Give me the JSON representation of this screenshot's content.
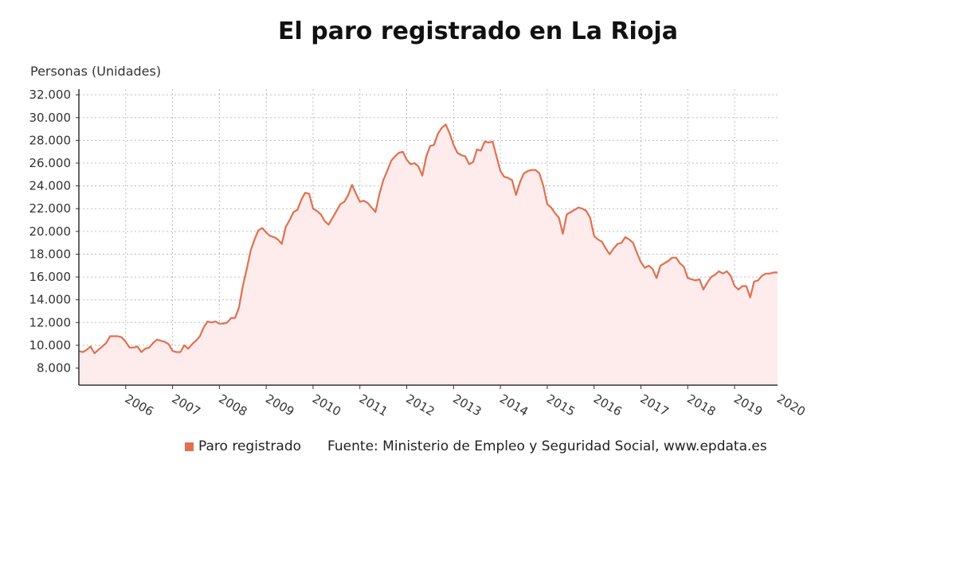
{
  "chart_data": {
    "type": "area",
    "title": "El paro registrado en La Rioja",
    "ylabel": "Personas (Unidades)",
    "xlabel": "",
    "ylim": [
      6500,
      32500
    ],
    "xlim": [
      2005.0,
      2019.917
    ],
    "yticks": [
      8000,
      10000,
      12000,
      14000,
      16000,
      18000,
      20000,
      22000,
      24000,
      26000,
      28000,
      30000,
      32000
    ],
    "ytick_labels": [
      "8.000",
      "10.000",
      "12.000",
      "14.000",
      "16.000",
      "18.000",
      "20.000",
      "22.000",
      "24.000",
      "26.000",
      "28.000",
      "30.000",
      "32.000"
    ],
    "xticks": [
      2006,
      2007,
      2008,
      2009,
      2010,
      2011,
      2012,
      2013,
      2014,
      2015,
      2016,
      2017,
      2018,
      2019,
      2020
    ],
    "grid": true,
    "legend_position": "bottom-left",
    "series": [
      {
        "name": "Paro registrado",
        "color": "#e07050",
        "points": [
          [
            2005.0,
            9500
          ],
          [
            2005.083,
            9400
          ],
          [
            2005.167,
            9600
          ],
          [
            2005.25,
            9900
          ],
          [
            2005.333,
            9300
          ],
          [
            2005.417,
            9600
          ],
          [
            2005.5,
            9900
          ],
          [
            2005.583,
            10200
          ],
          [
            2005.667,
            10800
          ],
          [
            2005.75,
            10800
          ],
          [
            2005.833,
            10800
          ],
          [
            2005.917,
            10700
          ],
          [
            2006.0,
            10300
          ],
          [
            2006.083,
            9800
          ],
          [
            2006.167,
            9800
          ],
          [
            2006.25,
            9900
          ],
          [
            2006.333,
            9400
          ],
          [
            2006.417,
            9700
          ],
          [
            2006.5,
            9800
          ],
          [
            2006.583,
            10200
          ],
          [
            2006.667,
            10500
          ],
          [
            2006.75,
            10400
          ],
          [
            2006.833,
            10300
          ],
          [
            2006.917,
            10100
          ],
          [
            2007.0,
            9500
          ],
          [
            2007.083,
            9400
          ],
          [
            2007.167,
            9400
          ],
          [
            2007.25,
            10000
          ],
          [
            2007.333,
            9700
          ],
          [
            2007.417,
            10100
          ],
          [
            2007.5,
            10400
          ],
          [
            2007.583,
            10800
          ],
          [
            2007.667,
            11600
          ],
          [
            2007.75,
            12100
          ],
          [
            2007.833,
            12000
          ],
          [
            2007.917,
            12100
          ],
          [
            2008.0,
            11900
          ],
          [
            2008.083,
            11900
          ],
          [
            2008.167,
            12000
          ],
          [
            2008.25,
            12400
          ],
          [
            2008.333,
            12400
          ],
          [
            2008.417,
            13300
          ],
          [
            2008.5,
            15200
          ],
          [
            2008.583,
            16700
          ],
          [
            2008.667,
            18300
          ],
          [
            2008.75,
            19300
          ],
          [
            2008.833,
            20100
          ],
          [
            2008.917,
            20300
          ],
          [
            2009.0,
            19900
          ],
          [
            2009.083,
            19600
          ],
          [
            2009.167,
            19500
          ],
          [
            2009.25,
            19300
          ],
          [
            2009.333,
            18900
          ],
          [
            2009.417,
            20400
          ],
          [
            2009.5,
            21000
          ],
          [
            2009.583,
            21700
          ],
          [
            2009.667,
            21900
          ],
          [
            2009.75,
            22800
          ],
          [
            2009.833,
            23400
          ],
          [
            2009.917,
            23300
          ],
          [
            2010.0,
            22000
          ],
          [
            2010.083,
            21800
          ],
          [
            2010.167,
            21500
          ],
          [
            2010.25,
            20900
          ],
          [
            2010.333,
            20600
          ],
          [
            2010.417,
            21200
          ],
          [
            2010.5,
            21800
          ],
          [
            2010.583,
            22400
          ],
          [
            2010.667,
            22600
          ],
          [
            2010.75,
            23200
          ],
          [
            2010.833,
            24100
          ],
          [
            2010.917,
            23300
          ],
          [
            2011.0,
            22600
          ],
          [
            2011.083,
            22700
          ],
          [
            2011.167,
            22500
          ],
          [
            2011.25,
            22100
          ],
          [
            2011.333,
            21700
          ],
          [
            2011.417,
            23300
          ],
          [
            2011.5,
            24500
          ],
          [
            2011.583,
            25300
          ],
          [
            2011.667,
            26200
          ],
          [
            2011.75,
            26600
          ],
          [
            2011.833,
            26900
          ],
          [
            2011.917,
            27000
          ],
          [
            2012.0,
            26300
          ],
          [
            2012.083,
            25900
          ],
          [
            2012.167,
            26000
          ],
          [
            2012.25,
            25700
          ],
          [
            2012.333,
            24900
          ],
          [
            2012.417,
            26600
          ],
          [
            2012.5,
            27500
          ],
          [
            2012.583,
            27600
          ],
          [
            2012.667,
            28600
          ],
          [
            2012.75,
            29100
          ],
          [
            2012.833,
            29400
          ],
          [
            2012.917,
            28600
          ],
          [
            2013.0,
            27600
          ],
          [
            2013.083,
            26900
          ],
          [
            2013.167,
            26700
          ],
          [
            2013.25,
            26600
          ],
          [
            2013.333,
            25900
          ],
          [
            2013.417,
            26100
          ],
          [
            2013.5,
            27200
          ],
          [
            2013.583,
            27100
          ],
          [
            2013.667,
            27900
          ],
          [
            2013.75,
            27800
          ],
          [
            2013.833,
            27900
          ],
          [
            2013.917,
            26600
          ],
          [
            2014.0,
            25300
          ],
          [
            2014.083,
            24800
          ],
          [
            2014.167,
            24700
          ],
          [
            2014.25,
            24500
          ],
          [
            2014.333,
            23200
          ],
          [
            2014.417,
            24300
          ],
          [
            2014.5,
            25100
          ],
          [
            2014.583,
            25300
          ],
          [
            2014.667,
            25400
          ],
          [
            2014.75,
            25400
          ],
          [
            2014.833,
            25100
          ],
          [
            2014.917,
            24000
          ],
          [
            2015.0,
            22400
          ],
          [
            2015.083,
            22100
          ],
          [
            2015.167,
            21600
          ],
          [
            2015.25,
            21200
          ],
          [
            2015.333,
            19800
          ],
          [
            2015.417,
            21500
          ],
          [
            2015.5,
            21700
          ],
          [
            2015.583,
            21900
          ],
          [
            2015.667,
            22100
          ],
          [
            2015.75,
            22000
          ],
          [
            2015.833,
            21800
          ],
          [
            2015.917,
            21200
          ],
          [
            2016.0,
            19600
          ],
          [
            2016.083,
            19300
          ],
          [
            2016.167,
            19100
          ],
          [
            2016.25,
            18500
          ],
          [
            2016.333,
            18000
          ],
          [
            2016.417,
            18500
          ],
          [
            2016.5,
            18900
          ],
          [
            2016.583,
            19000
          ],
          [
            2016.667,
            19500
          ],
          [
            2016.75,
            19300
          ],
          [
            2016.833,
            19000
          ],
          [
            2016.917,
            18100
          ],
          [
            2017.0,
            17300
          ],
          [
            2017.083,
            16800
          ],
          [
            2017.167,
            17000
          ],
          [
            2017.25,
            16700
          ],
          [
            2017.333,
            15900
          ],
          [
            2017.417,
            17000
          ],
          [
            2017.5,
            17200
          ],
          [
            2017.583,
            17400
          ],
          [
            2017.667,
            17700
          ],
          [
            2017.75,
            17700
          ],
          [
            2017.833,
            17200
          ],
          [
            2017.917,
            16900
          ],
          [
            2018.0,
            15900
          ],
          [
            2018.083,
            15800
          ],
          [
            2018.167,
            15700
          ],
          [
            2018.25,
            15800
          ],
          [
            2018.333,
            14900
          ],
          [
            2018.417,
            15500
          ],
          [
            2018.5,
            16000
          ],
          [
            2018.583,
            16200
          ],
          [
            2018.667,
            16500
          ],
          [
            2018.75,
            16300
          ],
          [
            2018.833,
            16500
          ],
          [
            2018.917,
            16100
          ],
          [
            2019.0,
            15200
          ],
          [
            2019.083,
            14900
          ],
          [
            2019.167,
            15200
          ],
          [
            2019.25,
            15200
          ],
          [
            2019.333,
            14200
          ],
          [
            2019.417,
            15600
          ],
          [
            2019.5,
            15700
          ],
          [
            2019.583,
            16100
          ],
          [
            2019.667,
            16300
          ],
          [
            2019.75,
            16300
          ],
          [
            2019.833,
            16400
          ],
          [
            2019.917,
            16400
          ]
        ]
      }
    ]
  },
  "legend": {
    "series_label": "Paro registrado",
    "swatch_color": "#e07050",
    "source": "Fuente: Ministerio de Empleo y Seguridad Social, www.epdata.es"
  }
}
